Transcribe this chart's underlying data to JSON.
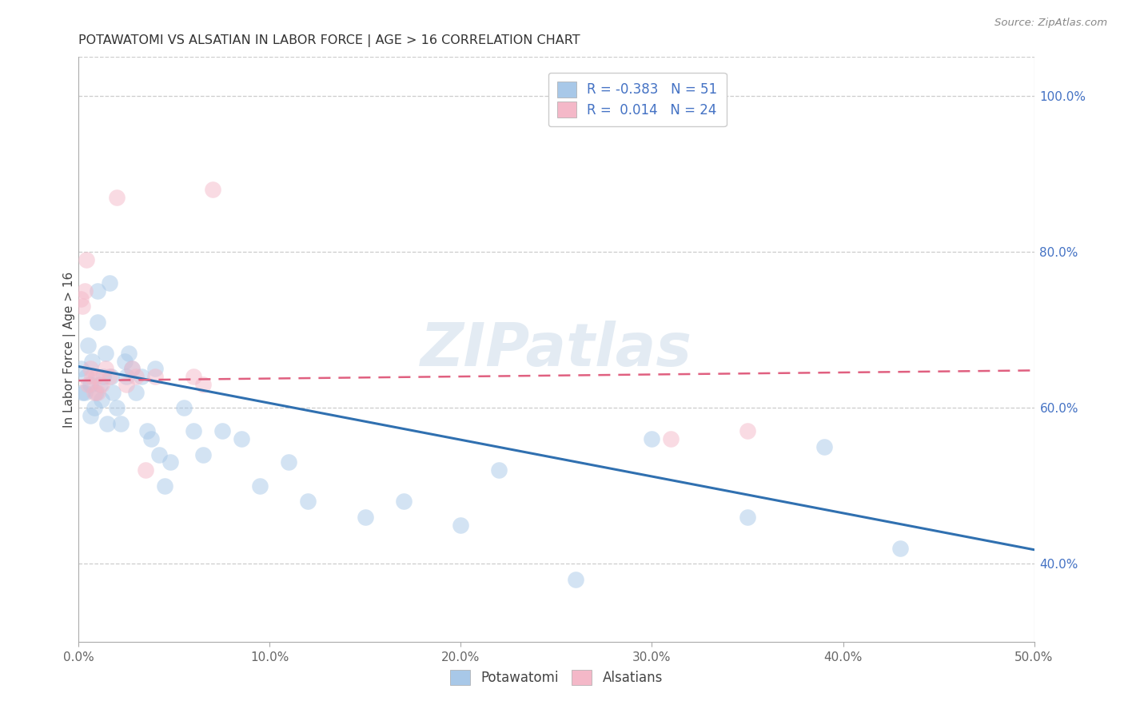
{
  "title": "POTAWATOMI VS ALSATIAN IN LABOR FORCE | AGE > 16 CORRELATION CHART",
  "source": "Source: ZipAtlas.com",
  "ylabel": "In Labor Force | Age > 16",
  "xlim": [
    0.0,
    0.5
  ],
  "ylim": [
    0.3,
    1.05
  ],
  "yticks_right": [
    0.4,
    0.6,
    0.8,
    1.0
  ],
  "yticklabels_right": [
    "40.0%",
    "60.0%",
    "80.0%",
    "100.0%"
  ],
  "legend_R_blue": "-0.383",
  "legend_N_blue": "51",
  "legend_R_pink": "0.014",
  "legend_N_pink": "24",
  "blue_color": "#a8c8e8",
  "pink_color": "#f4b8c8",
  "blue_line_color": "#3070b0",
  "pink_line_color": "#e06080",
  "watermark": "ZIPatlas",
  "potawatomi_x": [
    0.001,
    0.002,
    0.003,
    0.004,
    0.005,
    0.006,
    0.006,
    0.007,
    0.008,
    0.009,
    0.01,
    0.01,
    0.011,
    0.012,
    0.013,
    0.014,
    0.015,
    0.016,
    0.017,
    0.018,
    0.02,
    0.022,
    0.024,
    0.025,
    0.026,
    0.028,
    0.03,
    0.033,
    0.036,
    0.038,
    0.04,
    0.042,
    0.045,
    0.048,
    0.055,
    0.06,
    0.065,
    0.075,
    0.085,
    0.095,
    0.11,
    0.12,
    0.15,
    0.17,
    0.2,
    0.22,
    0.26,
    0.3,
    0.35,
    0.39,
    0.43
  ],
  "potawatomi_y": [
    0.65,
    0.62,
    0.62,
    0.64,
    0.68,
    0.63,
    0.59,
    0.66,
    0.6,
    0.62,
    0.71,
    0.75,
    0.63,
    0.61,
    0.64,
    0.67,
    0.58,
    0.76,
    0.64,
    0.62,
    0.6,
    0.58,
    0.66,
    0.64,
    0.67,
    0.65,
    0.62,
    0.64,
    0.57,
    0.56,
    0.65,
    0.54,
    0.5,
    0.53,
    0.6,
    0.57,
    0.54,
    0.57,
    0.56,
    0.5,
    0.53,
    0.48,
    0.46,
    0.48,
    0.45,
    0.52,
    0.38,
    0.56,
    0.46,
    0.55,
    0.42
  ],
  "alsatian_x": [
    0.001,
    0.002,
    0.003,
    0.004,
    0.005,
    0.006,
    0.007,
    0.008,
    0.009,
    0.01,
    0.012,
    0.014,
    0.016,
    0.02,
    0.025,
    0.028,
    0.03,
    0.035,
    0.04,
    0.06,
    0.065,
    0.07,
    0.31,
    0.35
  ],
  "alsatian_y": [
    0.74,
    0.73,
    0.75,
    0.79,
    0.63,
    0.65,
    0.64,
    0.62,
    0.64,
    0.62,
    0.63,
    0.65,
    0.64,
    0.87,
    0.63,
    0.65,
    0.64,
    0.52,
    0.64,
    0.64,
    0.63,
    0.88,
    0.56,
    0.57
  ],
  "blue_trend_x0": 0.0,
  "blue_trend_y0": 0.653,
  "blue_trend_x1": 0.5,
  "blue_trend_y1": 0.418,
  "pink_trend_x0": 0.0,
  "pink_trend_y0": 0.635,
  "pink_trend_x1": 0.5,
  "pink_trend_y1": 0.648
}
